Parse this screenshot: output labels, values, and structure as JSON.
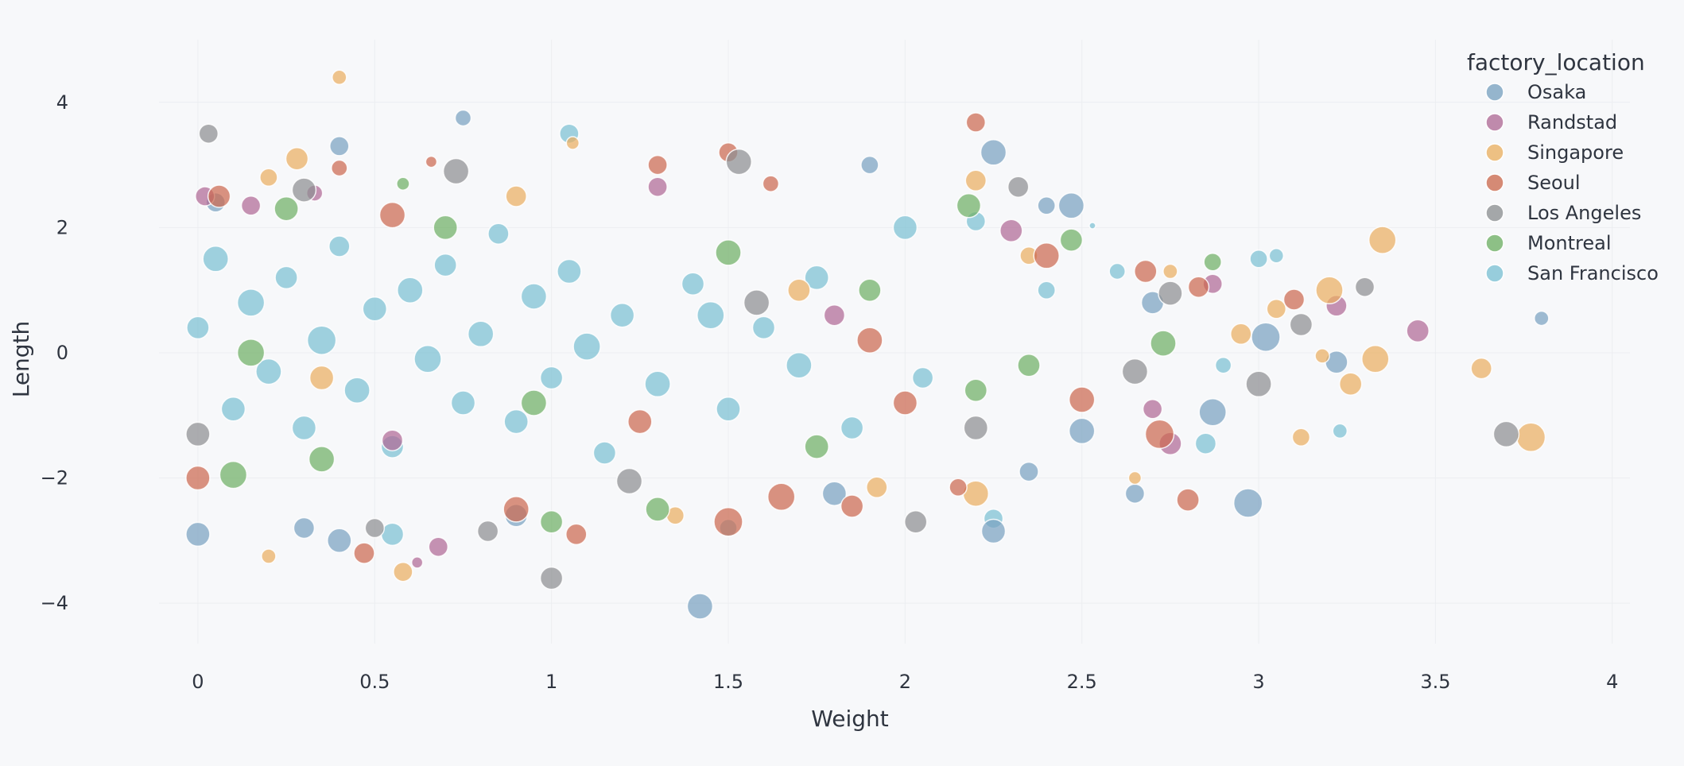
{
  "chart_data": {
    "type": "scatter",
    "title": "",
    "xlabel": "Weight",
    "ylabel": "Length",
    "xlim": [
      -0.2,
      4.05
    ],
    "ylim": [
      -4.9,
      5.0
    ],
    "xticks": [
      0,
      0.5,
      1,
      1.5,
      2,
      2.5,
      3,
      3.5,
      4
    ],
    "xtick_labels": [
      "0",
      "0.5",
      "1",
      "1.5",
      "2",
      "2.5",
      "3",
      "3.5",
      "4"
    ],
    "yticks": [
      -4,
      -2,
      0,
      2,
      4
    ],
    "ytick_labels": [
      "−4",
      "−2",
      "0",
      "2",
      "4"
    ],
    "grid": true,
    "legend_position": "top-right",
    "legend_title": "factory_location",
    "series": [
      {
        "name": "Osaka",
        "color": "#7aa2c0"
      },
      {
        "name": "Randstad",
        "color": "#b06a96"
      },
      {
        "name": "Singapore",
        "color": "#eaaf61"
      },
      {
        "name": "Seoul",
        "color": "#cc6a50"
      },
      {
        "name": "Los Angeles",
        "color": "#8d8f92"
      },
      {
        "name": "Montreal",
        "color": "#6fb065"
      },
      {
        "name": "San Francisco",
        "color": "#7cc0d3"
      }
    ],
    "points": [
      {
        "series": "San Francisco",
        "x": 0.0,
        "y": 0.4,
        "r": 14
      },
      {
        "series": "San Francisco",
        "x": 0.05,
        "y": 1.5,
        "r": 16
      },
      {
        "series": "San Francisco",
        "x": 0.1,
        "y": -0.9,
        "r": 15
      },
      {
        "series": "San Francisco",
        "x": 0.15,
        "y": 0.8,
        "r": 17
      },
      {
        "series": "San Francisco",
        "x": 0.2,
        "y": -0.3,
        "r": 16
      },
      {
        "series": "San Francisco",
        "x": 0.25,
        "y": 1.2,
        "r": 14
      },
      {
        "series": "San Francisco",
        "x": 0.3,
        "y": -1.2,
        "r": 15
      },
      {
        "series": "San Francisco",
        "x": 0.35,
        "y": 0.2,
        "r": 18
      },
      {
        "series": "San Francisco",
        "x": 0.4,
        "y": 1.7,
        "r": 13
      },
      {
        "series": "San Francisco",
        "x": 0.45,
        "y": -0.6,
        "r": 16
      },
      {
        "series": "San Francisco",
        "x": 0.5,
        "y": 0.7,
        "r": 15
      },
      {
        "series": "San Francisco",
        "x": 0.55,
        "y": -1.5,
        "r": 14
      },
      {
        "series": "San Francisco",
        "x": 0.6,
        "y": 1.0,
        "r": 16
      },
      {
        "series": "San Francisco",
        "x": 0.65,
        "y": -0.1,
        "r": 17
      },
      {
        "series": "San Francisco",
        "x": 0.7,
        "y": 1.4,
        "r": 14
      },
      {
        "series": "San Francisco",
        "x": 0.75,
        "y": -0.8,
        "r": 15
      },
      {
        "series": "San Francisco",
        "x": 0.8,
        "y": 0.3,
        "r": 16
      },
      {
        "series": "San Francisco",
        "x": 0.85,
        "y": 1.9,
        "r": 13
      },
      {
        "series": "San Francisco",
        "x": 0.9,
        "y": -1.1,
        "r": 15
      },
      {
        "series": "San Francisco",
        "x": 0.95,
        "y": 0.9,
        "r": 16
      },
      {
        "series": "San Francisco",
        "x": 1.0,
        "y": -0.4,
        "r": 14
      },
      {
        "series": "San Francisco",
        "x": 1.05,
        "y": 1.3,
        "r": 15
      },
      {
        "series": "San Francisco",
        "x": 1.1,
        "y": 0.1,
        "r": 17
      },
      {
        "series": "San Francisco",
        "x": 1.15,
        "y": -1.6,
        "r": 14
      },
      {
        "series": "San Francisco",
        "x": 1.2,
        "y": 0.6,
        "r": 15
      },
      {
        "series": "San Francisco",
        "x": 1.3,
        "y": -0.5,
        "r": 16
      },
      {
        "series": "San Francisco",
        "x": 1.4,
        "y": 1.1,
        "r": 14
      },
      {
        "series": "San Francisco",
        "x": 1.45,
        "y": 0.6,
        "r": 17
      },
      {
        "series": "San Francisco",
        "x": 1.5,
        "y": -0.9,
        "r": 15
      },
      {
        "series": "San Francisco",
        "x": 1.6,
        "y": 0.4,
        "r": 14
      },
      {
        "series": "San Francisco",
        "x": 1.7,
        "y": -0.2,
        "r": 16
      },
      {
        "series": "San Francisco",
        "x": 1.75,
        "y": 1.2,
        "r": 15
      },
      {
        "series": "San Francisco",
        "x": 1.85,
        "y": -1.2,
        "r": 14
      },
      {
        "series": "San Francisco",
        "x": 2.0,
        "y": 2.0,
        "r": 15
      },
      {
        "series": "San Francisco",
        "x": 2.05,
        "y": -0.4,
        "r": 13
      },
      {
        "series": "San Francisco",
        "x": 2.2,
        "y": 2.1,
        "r": 12
      },
      {
        "series": "San Francisco",
        "x": 2.4,
        "y": 1.0,
        "r": 11
      },
      {
        "series": "San Francisco",
        "x": 2.6,
        "y": 1.3,
        "r": 10
      },
      {
        "series": "San Francisco",
        "x": 2.85,
        "y": -1.45,
        "r": 13
      },
      {
        "series": "San Francisco",
        "x": 2.9,
        "y": -0.2,
        "r": 10
      },
      {
        "series": "San Francisco",
        "x": 3.0,
        "y": 1.5,
        "r": 11
      },
      {
        "series": "San Francisco",
        "x": 3.05,
        "y": 1.55,
        "r": 9
      },
      {
        "series": "San Francisco",
        "x": 3.23,
        "y": -1.25,
        "r": 9
      },
      {
        "series": "San Francisco",
        "x": 1.05,
        "y": 3.5,
        "r": 12
      },
      {
        "series": "San Francisco",
        "x": 1.5,
        "y": -2.8,
        "r": 11
      },
      {
        "series": "San Francisco",
        "x": 0.55,
        "y": -2.9,
        "r": 14
      },
      {
        "series": "San Francisco",
        "x": 2.25,
        "y": -2.65,
        "r": 12
      },
      {
        "series": "San Francisco",
        "x": 2.53,
        "y": 2.03,
        "r": 4
      },
      {
        "series": "Osaka",
        "x": 0.05,
        "y": 2.4,
        "r": 12
      },
      {
        "series": "Osaka",
        "x": 0.0,
        "y": -2.9,
        "r": 15
      },
      {
        "series": "Osaka",
        "x": 0.4,
        "y": 3.3,
        "r": 12
      },
      {
        "series": "Osaka",
        "x": 0.75,
        "y": 3.75,
        "r": 10
      },
      {
        "series": "Osaka",
        "x": 0.4,
        "y": -3.0,
        "r": 15
      },
      {
        "series": "Osaka",
        "x": 1.42,
        "y": -4.05,
        "r": 16
      },
      {
        "series": "Osaka",
        "x": 1.9,
        "y": 3.0,
        "r": 11
      },
      {
        "series": "Osaka",
        "x": 2.25,
        "y": 3.2,
        "r": 16
      },
      {
        "series": "Osaka",
        "x": 2.47,
        "y": 2.35,
        "r": 16
      },
      {
        "series": "Osaka",
        "x": 2.4,
        "y": 2.35,
        "r": 11
      },
      {
        "series": "Osaka",
        "x": 2.25,
        "y": -2.85,
        "r": 15
      },
      {
        "series": "Osaka",
        "x": 2.65,
        "y": -2.25,
        "r": 12
      },
      {
        "series": "Osaka",
        "x": 2.97,
        "y": -2.4,
        "r": 18
      },
      {
        "series": "Osaka",
        "x": 3.22,
        "y": -0.15,
        "r": 14
      },
      {
        "series": "Osaka",
        "x": 3.02,
        "y": 0.25,
        "r": 18
      },
      {
        "series": "Osaka",
        "x": 2.87,
        "y": -0.95,
        "r": 17
      },
      {
        "series": "Osaka",
        "x": 3.8,
        "y": 0.55,
        "r": 9
      },
      {
        "series": "Osaka",
        "x": 2.5,
        "y": -1.25,
        "r": 16
      },
      {
        "series": "Osaka",
        "x": 1.8,
        "y": -2.25,
        "r": 15
      },
      {
        "series": "Osaka",
        "x": 0.9,
        "y": -2.6,
        "r": 14
      },
      {
        "series": "Osaka",
        "x": 0.3,
        "y": -2.8,
        "r": 13
      },
      {
        "series": "Osaka",
        "x": 2.7,
        "y": 0.8,
        "r": 14
      },
      {
        "series": "Osaka",
        "x": 2.35,
        "y": -1.9,
        "r": 12
      },
      {
        "series": "Randstad",
        "x": 0.02,
        "y": 2.5,
        "r": 12
      },
      {
        "series": "Randstad",
        "x": 0.15,
        "y": 2.35,
        "r": 12
      },
      {
        "series": "Randstad",
        "x": 0.33,
        "y": 2.55,
        "r": 10
      },
      {
        "series": "Randstad",
        "x": 1.3,
        "y": 2.65,
        "r": 12
      },
      {
        "series": "Randstad",
        "x": 2.3,
        "y": 1.95,
        "r": 14
      },
      {
        "series": "Randstad",
        "x": 3.45,
        "y": 0.35,
        "r": 14
      },
      {
        "series": "Randstad",
        "x": 3.22,
        "y": 0.75,
        "r": 13
      },
      {
        "series": "Randstad",
        "x": 2.87,
        "y": 1.1,
        "r": 12
      },
      {
        "series": "Randstad",
        "x": 2.75,
        "y": -1.45,
        "r": 14
      },
      {
        "series": "Randstad",
        "x": 2.7,
        "y": -0.9,
        "r": 12
      },
      {
        "series": "Randstad",
        "x": 0.68,
        "y": -3.1,
        "r": 12
      },
      {
        "series": "Randstad",
        "x": 0.62,
        "y": -3.35,
        "r": 7
      },
      {
        "series": "Randstad",
        "x": 1.8,
        "y": 0.6,
        "r": 13
      },
      {
        "series": "Randstad",
        "x": 0.55,
        "y": -1.4,
        "r": 13
      },
      {
        "series": "Singapore",
        "x": 0.4,
        "y": 4.4,
        "r": 9
      },
      {
        "series": "Singapore",
        "x": 0.28,
        "y": 3.1,
        "r": 14
      },
      {
        "series": "Singapore",
        "x": 0.2,
        "y": 2.8,
        "r": 11
      },
      {
        "series": "Singapore",
        "x": 0.2,
        "y": -3.25,
        "r": 9
      },
      {
        "series": "Singapore",
        "x": 0.58,
        "y": -3.5,
        "r": 12
      },
      {
        "series": "Singapore",
        "x": 1.06,
        "y": 3.35,
        "r": 8
      },
      {
        "series": "Singapore",
        "x": 3.35,
        "y": 1.8,
        "r": 17
      },
      {
        "series": "Singapore",
        "x": 3.2,
        "y": 1.0,
        "r": 17
      },
      {
        "series": "Singapore",
        "x": 3.33,
        "y": -0.1,
        "r": 17
      },
      {
        "series": "Singapore",
        "x": 3.63,
        "y": -0.25,
        "r": 13
      },
      {
        "series": "Singapore",
        "x": 3.77,
        "y": -1.35,
        "r": 18
      },
      {
        "series": "Singapore",
        "x": 3.26,
        "y": -0.5,
        "r": 14
      },
      {
        "series": "Singapore",
        "x": 3.12,
        "y": -1.35,
        "r": 11
      },
      {
        "series": "Singapore",
        "x": 3.18,
        "y": -0.05,
        "r": 9
      },
      {
        "series": "Singapore",
        "x": 3.05,
        "y": 0.7,
        "r": 12
      },
      {
        "series": "Singapore",
        "x": 2.2,
        "y": -2.25,
        "r": 16
      },
      {
        "series": "Singapore",
        "x": 2.65,
        "y": -2.0,
        "r": 8
      },
      {
        "series": "Singapore",
        "x": 1.92,
        "y": -2.15,
        "r": 13
      },
      {
        "series": "Singapore",
        "x": 2.2,
        "y": 2.75,
        "r": 13
      },
      {
        "series": "Singapore",
        "x": 2.35,
        "y": 1.55,
        "r": 11
      },
      {
        "series": "Singapore",
        "x": 2.75,
        "y": 1.3,
        "r": 9
      },
      {
        "series": "Singapore",
        "x": 2.95,
        "y": 0.3,
        "r": 13
      },
      {
        "series": "Singapore",
        "x": 1.35,
        "y": -2.6,
        "r": 11
      },
      {
        "series": "Singapore",
        "x": 0.9,
        "y": 2.5,
        "r": 13
      },
      {
        "series": "Singapore",
        "x": 1.7,
        "y": 1.0,
        "r": 14
      },
      {
        "series": "Singapore",
        "x": 0.35,
        "y": -0.4,
        "r": 15
      },
      {
        "series": "Seoul",
        "x": 0.06,
        "y": 2.5,
        "r": 14
      },
      {
        "series": "Seoul",
        "x": 0.4,
        "y": 2.95,
        "r": 10
      },
      {
        "series": "Seoul",
        "x": 0.66,
        "y": 3.05,
        "r": 7
      },
      {
        "series": "Seoul",
        "x": 1.5,
        "y": 3.2,
        "r": 12
      },
      {
        "series": "Seoul",
        "x": 1.3,
        "y": 3.0,
        "r": 12
      },
      {
        "series": "Seoul",
        "x": 2.2,
        "y": 3.68,
        "r": 12
      },
      {
        "series": "Seoul",
        "x": 2.4,
        "y": 1.55,
        "r": 16
      },
      {
        "series": "Seoul",
        "x": 2.68,
        "y": 1.3,
        "r": 14
      },
      {
        "series": "Seoul",
        "x": 2.83,
        "y": 1.05,
        "r": 13
      },
      {
        "series": "Seoul",
        "x": 3.1,
        "y": 0.85,
        "r": 13
      },
      {
        "series": "Seoul",
        "x": 2.72,
        "y": -1.3,
        "r": 18
      },
      {
        "series": "Seoul",
        "x": 2.8,
        "y": -2.35,
        "r": 14
      },
      {
        "series": "Seoul",
        "x": 2.5,
        "y": -0.75,
        "r": 16
      },
      {
        "series": "Seoul",
        "x": 2.15,
        "y": -2.15,
        "r": 11
      },
      {
        "series": "Seoul",
        "x": 1.85,
        "y": -2.45,
        "r": 14
      },
      {
        "series": "Seoul",
        "x": 1.65,
        "y": -2.3,
        "r": 17
      },
      {
        "series": "Seoul",
        "x": 1.5,
        "y": -2.7,
        "r": 18
      },
      {
        "series": "Seoul",
        "x": 1.07,
        "y": -2.9,
        "r": 13
      },
      {
        "series": "Seoul",
        "x": 0.47,
        "y": -3.2,
        "r": 13
      },
      {
        "series": "Seoul",
        "x": 0.0,
        "y": -2.0,
        "r": 15
      },
      {
        "series": "Seoul",
        "x": 0.55,
        "y": 2.2,
        "r": 16
      },
      {
        "series": "Seoul",
        "x": 1.9,
        "y": 0.2,
        "r": 16
      },
      {
        "series": "Seoul",
        "x": 1.25,
        "y": -1.1,
        "r": 15
      },
      {
        "series": "Seoul",
        "x": 1.62,
        "y": 2.7,
        "r": 10
      },
      {
        "series": "Seoul",
        "x": 2.0,
        "y": -0.8,
        "r": 15
      },
      {
        "series": "Seoul",
        "x": 0.9,
        "y": -2.5,
        "r": 16
      },
      {
        "series": "Los Angeles",
        "x": 0.03,
        "y": 3.5,
        "r": 12
      },
      {
        "series": "Los Angeles",
        "x": 0.73,
        "y": 2.9,
        "r": 16
      },
      {
        "series": "Los Angeles",
        "x": 1.53,
        "y": 3.05,
        "r": 16
      },
      {
        "series": "Los Angeles",
        "x": 2.32,
        "y": 2.65,
        "r": 13
      },
      {
        "series": "Los Angeles",
        "x": 2.75,
        "y": 0.95,
        "r": 15
      },
      {
        "series": "Los Angeles",
        "x": 3.3,
        "y": 1.05,
        "r": 12
      },
      {
        "series": "Los Angeles",
        "x": 3.12,
        "y": 0.45,
        "r": 14
      },
      {
        "series": "Los Angeles",
        "x": 3.0,
        "y": -0.5,
        "r": 16
      },
      {
        "series": "Los Angeles",
        "x": 3.7,
        "y": -1.3,
        "r": 16
      },
      {
        "series": "Los Angeles",
        "x": 2.03,
        "y": -2.7,
        "r": 14
      },
      {
        "series": "Los Angeles",
        "x": 1.0,
        "y": -3.6,
        "r": 14
      },
      {
        "series": "Los Angeles",
        "x": 0.82,
        "y": -2.85,
        "r": 13
      },
      {
        "series": "Los Angeles",
        "x": 0.5,
        "y": -2.8,
        "r": 12
      },
      {
        "series": "Los Angeles",
        "x": 0.3,
        "y": 2.6,
        "r": 15
      },
      {
        "series": "Los Angeles",
        "x": 1.22,
        "y": -2.05,
        "r": 16
      },
      {
        "series": "Los Angeles",
        "x": 1.58,
        "y": 0.8,
        "r": 16
      },
      {
        "series": "Los Angeles",
        "x": 2.2,
        "y": -1.2,
        "r": 15
      },
      {
        "series": "Los Angeles",
        "x": 2.65,
        "y": -0.3,
        "r": 16
      },
      {
        "series": "Los Angeles",
        "x": 0.0,
        "y": -1.3,
        "r": 15
      },
      {
        "series": "Montreal",
        "x": 0.1,
        "y": -1.95,
        "r": 17
      },
      {
        "series": "Montreal",
        "x": 0.25,
        "y": 2.3,
        "r": 15
      },
      {
        "series": "Montreal",
        "x": 0.58,
        "y": 2.7,
        "r": 8
      },
      {
        "series": "Montreal",
        "x": 1.0,
        "y": -2.7,
        "r": 14
      },
      {
        "series": "Montreal",
        "x": 1.3,
        "y": -2.5,
        "r": 15
      },
      {
        "series": "Montreal",
        "x": 2.18,
        "y": 2.35,
        "r": 15
      },
      {
        "series": "Montreal",
        "x": 2.47,
        "y": 1.8,
        "r": 14
      },
      {
        "series": "Montreal",
        "x": 2.73,
        "y": 0.15,
        "r": 16
      },
      {
        "series": "Montreal",
        "x": 2.87,
        "y": 1.45,
        "r": 11
      },
      {
        "series": "Montreal",
        "x": 2.2,
        "y": -0.6,
        "r": 14
      },
      {
        "series": "Montreal",
        "x": 1.9,
        "y": 1.0,
        "r": 14
      },
      {
        "series": "Montreal",
        "x": 1.5,
        "y": 1.6,
        "r": 16
      },
      {
        "series": "Montreal",
        "x": 0.95,
        "y": -0.8,
        "r": 16
      },
      {
        "series": "Montreal",
        "x": 0.7,
        "y": 2.0,
        "r": 15
      },
      {
        "series": "Montreal",
        "x": 1.75,
        "y": -1.5,
        "r": 15
      },
      {
        "series": "Montreal",
        "x": 2.35,
        "y": -0.2,
        "r": 14
      },
      {
        "series": "Montreal",
        "x": 0.15,
        "y": 0.0,
        "r": 17
      },
      {
        "series": "Montreal",
        "x": 0.35,
        "y": -1.7,
        "r": 16
      }
    ]
  }
}
